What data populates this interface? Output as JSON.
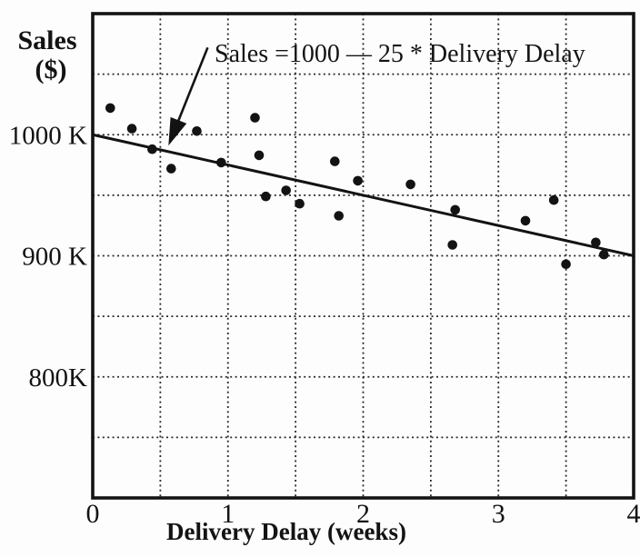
{
  "figure": {
    "background": "#fdfdfd",
    "ink_color": "#131313",
    "grid_color": "#2a2a2a"
  },
  "chart_data": {
    "type": "scatter",
    "title": "",
    "xlabel": "Delivery Delay (weeks)",
    "ylabel_line1": "Sales",
    "ylabel_line2": "($)",
    "xlim": [
      0,
      4
    ],
    "ylim": [
      700,
      1100
    ],
    "x_grid_step": 0.5,
    "y_grid_step": 50,
    "grid_style": "dotted",
    "legend": "none",
    "x_ticks": [
      {
        "value": 0,
        "label": "0"
      },
      {
        "value": 1,
        "label": "1"
      },
      {
        "value": 2,
        "label": "2"
      },
      {
        "value": 3,
        "label": "3"
      },
      {
        "value": 4,
        "label": "4"
      }
    ],
    "y_ticks": [
      {
        "value": 1000,
        "label": "1000 K"
      },
      {
        "value": 900,
        "label": "900 K"
      },
      {
        "value": 800,
        "label": "800K"
      }
    ],
    "points_units": {
      "x": "weeks",
      "y": "sales in thousand $"
    },
    "points": [
      [
        0.13,
        1022
      ],
      [
        0.29,
        1005
      ],
      [
        0.44,
        988
      ],
      [
        0.58,
        972
      ],
      [
        0.77,
        1003
      ],
      [
        0.95,
        977
      ],
      [
        1.2,
        1014
      ],
      [
        1.23,
        983
      ],
      [
        1.28,
        949
      ],
      [
        1.43,
        954
      ],
      [
        1.53,
        943
      ],
      [
        1.79,
        978
      ],
      [
        1.82,
        933
      ],
      [
        1.96,
        962
      ],
      [
        2.35,
        959
      ],
      [
        2.66,
        909
      ],
      [
        2.68,
        938
      ],
      [
        3.2,
        929
      ],
      [
        3.41,
        946
      ],
      [
        3.5,
        893
      ],
      [
        3.72,
        911
      ],
      [
        3.78,
        901
      ]
    ],
    "regression_line": {
      "slope": -25,
      "intercept": 1000,
      "from": [
        0,
        1000
      ],
      "to": [
        4,
        900
      ]
    },
    "annotation": {
      "text": "Sales =1000 — 25 * Delivery Delay",
      "arrow_from_data": [
        0.85,
        1072
      ],
      "arrow_to_data": [
        0.56,
        991
      ]
    }
  }
}
